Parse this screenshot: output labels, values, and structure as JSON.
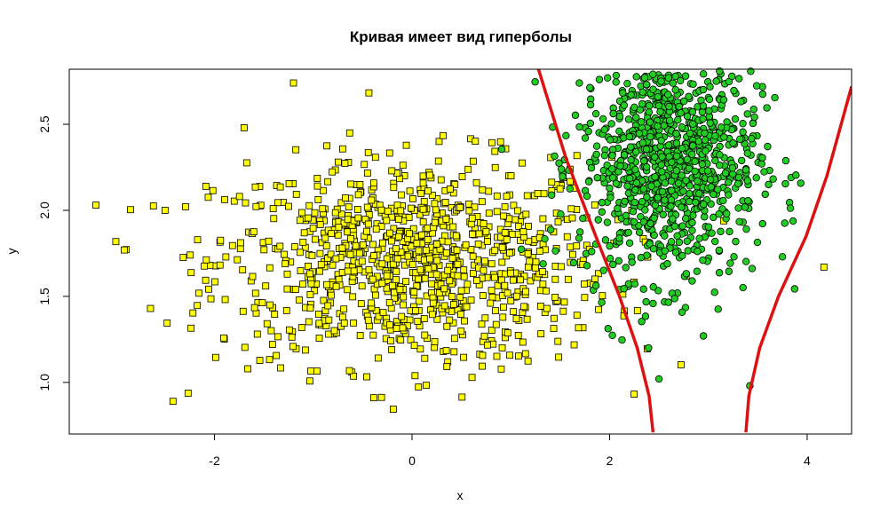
{
  "chart_data": {
    "type": "scatter",
    "title": "Кривая имеет вид гиперболы",
    "xlabel": "x",
    "ylabel": "y",
    "xlim": [
      -3.47,
      4.45
    ],
    "ylim": [
      0.7,
      2.82
    ],
    "xticks": [
      "-2",
      "0",
      "2",
      "4"
    ],
    "xtick_values": [
      -2,
      0,
      2,
      4
    ],
    "yticks": [
      "1.0",
      "1.5",
      "2.0",
      "2.5"
    ],
    "ytick_values": [
      1.0,
      1.5,
      2.0,
      2.5
    ],
    "grid": false,
    "legend": "none",
    "series": [
      {
        "marker": "square",
        "color": "#ffff00",
        "edge_color": "#000000",
        "n": 1000,
        "distribution": {
          "x_mean": 0.0,
          "x_sd": 1.0,
          "y_mean": 1.7,
          "y_sd": 0.3
        },
        "notable_points": [
          [
            -3.2,
            2.03
          ],
          [
            -2.5,
            2.0
          ],
          [
            -2.42,
            0.89
          ],
          [
            4.17,
            1.67
          ],
          [
            -1.7,
            2.48
          ],
          [
            -1.2,
            2.74
          ]
        ]
      },
      {
        "marker": "circle",
        "color": "#22cc22",
        "edge_color": "#000000",
        "n": 1000,
        "distribution": {
          "x_mean": 2.6,
          "x_sd": 0.45,
          "y_mean": 2.3,
          "y_sd": 0.35
        },
        "notable_points": [
          [
            2.5,
            1.02
          ],
          [
            2.95,
            1.27
          ],
          [
            3.42,
            0.98
          ],
          [
            3.75,
            1.73
          ],
          [
            3.82,
            2.81
          ]
        ]
      }
    ],
    "curve": {
      "color": "#dd1111",
      "description": "decision boundary, both branches of a hyperbola",
      "left_branch": [
        [
          1.28,
          2.82
        ],
        [
          1.56,
          2.3
        ],
        [
          1.86,
          1.85
        ],
        [
          2.1,
          1.5
        ],
        [
          2.28,
          1.2
        ],
        [
          2.4,
          0.92
        ],
        [
          2.44,
          0.71
        ]
      ],
      "right_branch": [
        [
          3.38,
          0.71
        ],
        [
          3.41,
          0.92
        ],
        [
          3.52,
          1.2
        ],
        [
          3.71,
          1.5
        ],
        [
          3.99,
          1.85
        ],
        [
          4.2,
          2.2
        ],
        [
          4.45,
          2.72
        ]
      ]
    }
  }
}
